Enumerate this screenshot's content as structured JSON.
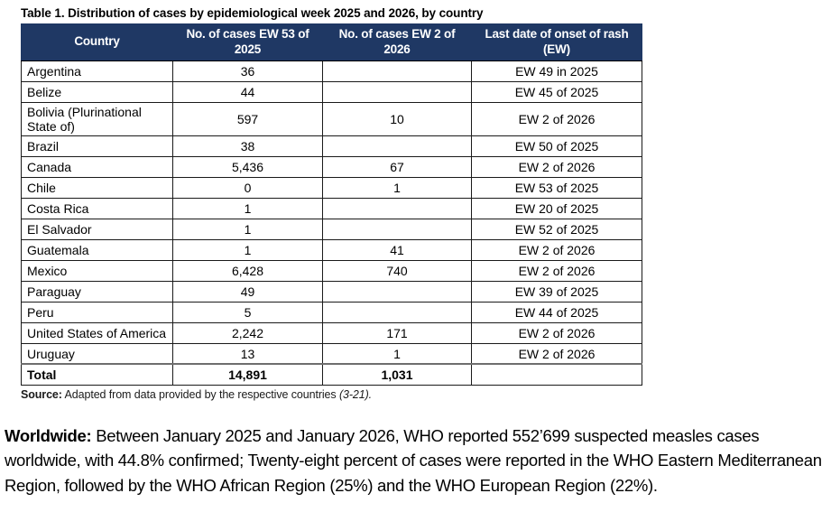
{
  "title": "Table 1. Distribution of cases by epidemiological week 2025 and 2026, by country",
  "table": {
    "columns": [
      "Country",
      "No. of cases EW 53 of 2025",
      "No. of cases EW 2 of 2026",
      "Last date of onset of rash (EW)"
    ],
    "rows": [
      {
        "country": "Argentina",
        "ew53_2025": "36",
        "ew2_2026": "",
        "last_onset": "EW 49 in 2025"
      },
      {
        "country": "Belize",
        "ew53_2025": "44",
        "ew2_2026": "",
        "last_onset": "EW 45 of 2025"
      },
      {
        "country": "Bolivia (Plurinational State of)",
        "ew53_2025": "597",
        "ew2_2026": "10",
        "last_onset": "EW 2 of 2026"
      },
      {
        "country": "Brazil",
        "ew53_2025": "38",
        "ew2_2026": "",
        "last_onset": "EW 50 of 2025"
      },
      {
        "country": "Canada",
        "ew53_2025": "5,436",
        "ew2_2026": "67",
        "last_onset": "EW 2 of 2026"
      },
      {
        "country": "Chile",
        "ew53_2025": "0",
        "ew2_2026": "1",
        "last_onset": "EW 53 of 2025"
      },
      {
        "country": "Costa Rica",
        "ew53_2025": "1",
        "ew2_2026": "",
        "last_onset": "EW 20 of 2025"
      },
      {
        "country": "El Salvador",
        "ew53_2025": "1",
        "ew2_2026": "",
        "last_onset": "EW 52 of 2025"
      },
      {
        "country": "Guatemala",
        "ew53_2025": "1",
        "ew2_2026": "41",
        "last_onset": "EW 2 of 2026"
      },
      {
        "country": "Mexico",
        "ew53_2025": "6,428",
        "ew2_2026": "740",
        "last_onset": "EW 2 of 2026"
      },
      {
        "country": "Paraguay",
        "ew53_2025": "49",
        "ew2_2026": "",
        "last_onset": "EW 39 of 2025"
      },
      {
        "country": "Peru",
        "ew53_2025": "5",
        "ew2_2026": "",
        "last_onset": "EW 44 of 2025"
      },
      {
        "country": "United States of America",
        "ew53_2025": "2,242",
        "ew2_2026": "171",
        "last_onset": "EW 2 of 2026"
      },
      {
        "country": "Uruguay",
        "ew53_2025": "13",
        "ew2_2026": "1",
        "last_onset": "EW 2 of 2026"
      }
    ],
    "total": {
      "label": "Total",
      "ew53_2025": "14,891",
      "ew2_2026": "1,031",
      "last_onset": ""
    }
  },
  "source": {
    "label": "Source:",
    "text": " Adapted from data provided by the respective countries ",
    "citation": "(3-21)."
  },
  "paragraph": {
    "lead": "Worldwide:",
    "text": " Between January 2025 and January 2026, WHO reported 552’699 suspected measles cases worldwide, with 44.8% confirmed; Twenty-eight percent of cases were reported in the WHO Eastern Mediterranean Region, followed by the WHO African Region (25%) and the WHO European Region (22%)."
  },
  "colors": {
    "header_bg": "#1F3864",
    "header_text": "#FFFFFF"
  }
}
